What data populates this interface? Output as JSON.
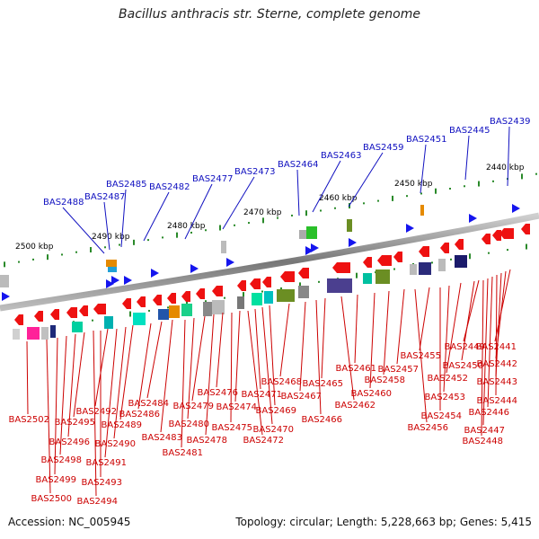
{
  "title": "Bacillus anthracis str. Sterne, complete genome",
  "footer": {
    "accession": "Accession: NC_005945",
    "stats": "Topology: circular; Length: 5,228,663 bp; Genes: 5,415"
  },
  "scale_labels": [
    "2440 kbp",
    "2450 kbp",
    "2460 kbp",
    "2470 kbp",
    "2480 kbp",
    "2490 kbp",
    "2500 kbp"
  ],
  "plus_strand_labels": [
    "BAS2439",
    "BAS2445",
    "BAS2451",
    "BAS2459",
    "BAS2463",
    "BAS2464",
    "BAS2473",
    "BAS2477",
    "BAS2482",
    "BAS2485",
    "BAS2487",
    "BAS2488"
  ],
  "minus_strand_labels": [
    "BAS2441",
    "BAS2442",
    "BAS2443",
    "BAS2444",
    "BAS2446",
    "BAS2447",
    "BAS2448",
    "BAS2449",
    "BAS2450",
    "BAS2452",
    "BAS2453",
    "BAS2454",
    "BAS2455",
    "BAS2456",
    "BAS2457",
    "BAS2458",
    "BAS2460",
    "BAS2461",
    "BAS2462",
    "BAS2465",
    "BAS2466",
    "BAS2467",
    "BAS2468",
    "BAS2469",
    "BAS2470",
    "BAS2471",
    "BAS2472",
    "BAS2474",
    "BAS2475",
    "BAS2476",
    "BAS2478",
    "BAS2479",
    "BAS2480",
    "BAS2481",
    "BAS2483",
    "BAS2484",
    "BAS2486",
    "BAS2489",
    "BAS2490",
    "BAS2491",
    "BAS2492",
    "BAS2493",
    "BAS2494",
    "BAS2495",
    "BAS2496",
    "BAS2498",
    "BAS2499",
    "BAS2500",
    "BAS2502"
  ],
  "colors": {
    "plus_label": "#1010c0",
    "minus_label": "#cc0000",
    "backbone": "#777777",
    "tick": "#2a8a2a",
    "minus_gene": "#ee1111",
    "plus_gene": "#1515ee"
  }
}
